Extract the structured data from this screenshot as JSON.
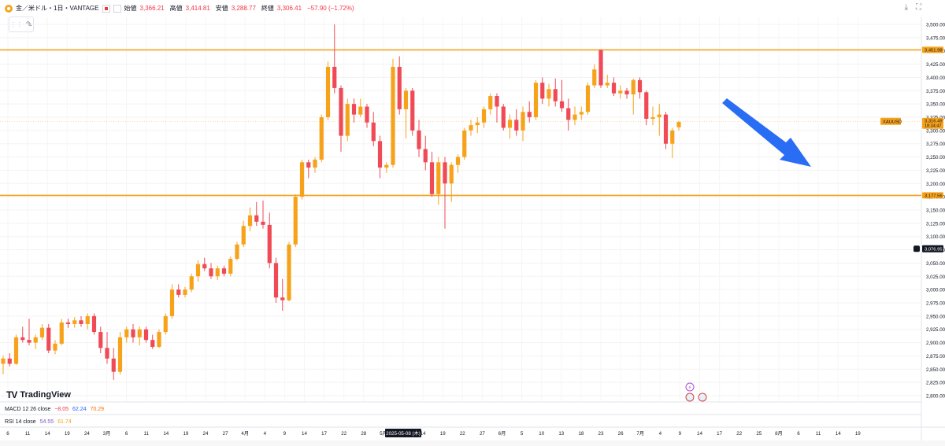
{
  "header": {
    "symbol": "金／米ドル・1日・VANTAGE",
    "open_label": "始値",
    "open": "3,366.21",
    "high_label": "高値",
    "high": "3,414.81",
    "low_label": "安値",
    "low": "3,288.77",
    "close_label": "終値",
    "close": "3,306.41",
    "change": "−57.90 (−1.72%)"
  },
  "indicators": {
    "macd_label": "MACD 12 26 close",
    "macd_v1": "−8.05",
    "macd_v2": "62.24",
    "macd_v3": "70.29",
    "rsi_label": "RSI 14 close",
    "rsi_v1": "54.55",
    "rsi_v2": "61.74"
  },
  "branding": {
    "logo_text": "TradingView"
  },
  "chart_data": {
    "type": "candlestick",
    "ylim": [
      2800,
      3525
    ],
    "y_ticks": [
      "3,500.00",
      "3,475.00",
      "3,450.00",
      "3,425.00",
      "3,400.00",
      "3,375.00",
      "3,350.00",
      "3,325.00",
      "3,300.00",
      "3,275.00",
      "3,250.00",
      "3,225.00",
      "3,200.00",
      "3,175.00",
      "3,150.00",
      "3,125.00",
      "3,100.00",
      "3,075.00",
      "3,050.00",
      "3,025.00",
      "3,000.00",
      "2,975.00",
      "2,950.00",
      "2,925.00",
      "2,900.00",
      "2,875.00",
      "2,850.00",
      "2,825.00",
      "2,800.00"
    ],
    "x_ticks": [
      "6",
      "11",
      "14",
      "19",
      "24",
      "3月",
      "6",
      "11",
      "14",
      "19",
      "24",
      "27",
      "4月",
      "4",
      "9",
      "14",
      "17",
      "22",
      "28",
      "5月",
      "2025-05-08 (木)",
      "14",
      "19",
      "22",
      "27",
      "6月",
      "5",
      "10",
      "13",
      "18",
      "23",
      "26",
      "7月",
      "4",
      "9",
      "14",
      "17",
      "22",
      "25",
      "8月",
      "6",
      "11",
      "14",
      "19"
    ],
    "horizontal_lines": [
      {
        "price": 3451.98,
        "label": "3,451.98",
        "color": "#f7a21b"
      },
      {
        "price": 3177.56,
        "label": "3,177.56",
        "color": "#f7a21b"
      }
    ],
    "price_labels": [
      {
        "symbol": "XAUUSD",
        "price": "3,316.49",
        "countdown": "18:34:47"
      },
      {
        "price": "3,076.95"
      }
    ],
    "up_color": "#f7a21b",
    "down_color": "#ef4a56",
    "candles": [
      {
        "o": 2860,
        "h": 2875,
        "l": 2840,
        "c": 2870
      },
      {
        "o": 2870,
        "h": 2880,
        "l": 2855,
        "c": 2860
      },
      {
        "o": 2860,
        "h": 2915,
        "l": 2858,
        "c": 2910
      },
      {
        "o": 2910,
        "h": 2930,
        "l": 2900,
        "c": 2905
      },
      {
        "o": 2905,
        "h": 2945,
        "l": 2895,
        "c": 2900
      },
      {
        "o": 2900,
        "h": 2915,
        "l": 2888,
        "c": 2910
      },
      {
        "o": 2910,
        "h": 2935,
        "l": 2905,
        "c": 2928
      },
      {
        "o": 2928,
        "h": 2935,
        "l": 2880,
        "c": 2885
      },
      {
        "o": 2885,
        "h": 2905,
        "l": 2878,
        "c": 2898
      },
      {
        "o": 2898,
        "h": 2945,
        "l": 2895,
        "c": 2938
      },
      {
        "o": 2938,
        "h": 2945,
        "l": 2928,
        "c": 2935
      },
      {
        "o": 2935,
        "h": 2948,
        "l": 2928,
        "c": 2942
      },
      {
        "o": 2942,
        "h": 2950,
        "l": 2930,
        "c": 2935
      },
      {
        "o": 2935,
        "h": 2955,
        "l": 2925,
        "c": 2950
      },
      {
        "o": 2950,
        "h": 2955,
        "l": 2915,
        "c": 2920
      },
      {
        "o": 2920,
        "h": 2930,
        "l": 2880,
        "c": 2890
      },
      {
        "o": 2890,
        "h": 2920,
        "l": 2860,
        "c": 2870
      },
      {
        "o": 2870,
        "h": 2890,
        "l": 2830,
        "c": 2845
      },
      {
        "o": 2845,
        "h": 2920,
        "l": 2840,
        "c": 2910
      },
      {
        "o": 2910,
        "h": 2930,
        "l": 2900,
        "c": 2925
      },
      {
        "o": 2925,
        "h": 2935,
        "l": 2900,
        "c": 2910
      },
      {
        "o": 2910,
        "h": 2930,
        "l": 2895,
        "c": 2925
      },
      {
        "o": 2925,
        "h": 2930,
        "l": 2900,
        "c": 2905
      },
      {
        "o": 2905,
        "h": 2915,
        "l": 2888,
        "c": 2892
      },
      {
        "o": 2892,
        "h": 2925,
        "l": 2890,
        "c": 2920
      },
      {
        "o": 2920,
        "h": 2955,
        "l": 2915,
        "c": 2950
      },
      {
        "o": 2950,
        "h": 3010,
        "l": 2945,
        "c": 3000
      },
      {
        "o": 3000,
        "h": 3010,
        "l": 2985,
        "c": 2990
      },
      {
        "o": 2990,
        "h": 3005,
        "l": 2985,
        "c": 3000
      },
      {
        "o": 3000,
        "h": 3030,
        "l": 2995,
        "c": 3025
      },
      {
        "o": 3025,
        "h": 3055,
        "l": 3015,
        "c": 3048
      },
      {
        "o": 3048,
        "h": 3060,
        "l": 3035,
        "c": 3040
      },
      {
        "o": 3040,
        "h": 3050,
        "l": 3020,
        "c": 3025
      },
      {
        "o": 3025,
        "h": 3045,
        "l": 3018,
        "c": 3040
      },
      {
        "o": 3040,
        "h": 3045,
        "l": 3025,
        "c": 3030
      },
      {
        "o": 3030,
        "h": 3062,
        "l": 3025,
        "c": 3058
      },
      {
        "o": 3058,
        "h": 3090,
        "l": 3055,
        "c": 3085
      },
      {
        "o": 3085,
        "h": 3130,
        "l": 3080,
        "c": 3120
      },
      {
        "o": 3120,
        "h": 3155,
        "l": 3110,
        "c": 3140
      },
      {
        "o": 3140,
        "h": 3165,
        "l": 3120,
        "c": 3128
      },
      {
        "o": 3128,
        "h": 3168,
        "l": 3115,
        "c": 3122
      },
      {
        "o": 3122,
        "h": 3145,
        "l": 3040,
        "c": 3050
      },
      {
        "o": 3050,
        "h": 3060,
        "l": 2975,
        "c": 2985
      },
      {
        "o": 2985,
        "h": 3020,
        "l": 2960,
        "c": 2980
      },
      {
        "o": 2980,
        "h": 3090,
        "l": 2978,
        "c": 3085
      },
      {
        "o": 3085,
        "h": 3180,
        "l": 3080,
        "c": 3175
      },
      {
        "o": 3175,
        "h": 3245,
        "l": 3170,
        "c": 3240
      },
      {
        "o": 3240,
        "h": 3245,
        "l": 3210,
        "c": 3230
      },
      {
        "o": 3230,
        "h": 3250,
        "l": 3220,
        "c": 3245
      },
      {
        "o": 3245,
        "h": 3330,
        "l": 3240,
        "c": 3325
      },
      {
        "o": 3325,
        "h": 3430,
        "l": 3320,
        "c": 3420
      },
      {
        "o": 3420,
        "h": 3500,
        "l": 3370,
        "c": 3380
      },
      {
        "o": 3380,
        "h": 3385,
        "l": 3260,
        "c": 3290
      },
      {
        "o": 3290,
        "h": 3360,
        "l": 3280,
        "c": 3350
      },
      {
        "o": 3350,
        "h": 3360,
        "l": 3315,
        "c": 3330
      },
      {
        "o": 3330,
        "h": 3360,
        "l": 3325,
        "c": 3345
      },
      {
        "o": 3345,
        "h": 3350,
        "l": 3305,
        "c": 3315
      },
      {
        "o": 3315,
        "h": 3335,
        "l": 3270,
        "c": 3280
      },
      {
        "o": 3280,
        "h": 3290,
        "l": 3210,
        "c": 3230
      },
      {
        "o": 3230,
        "h": 3240,
        "l": 3220,
        "c": 3235
      },
      {
        "o": 3235,
        "h": 3435,
        "l": 3230,
        "c": 3420
      },
      {
        "o": 3420,
        "h": 3440,
        "l": 3330,
        "c": 3340
      },
      {
        "o": 3340,
        "h": 3380,
        "l": 3285,
        "c": 3375
      },
      {
        "o": 3375,
        "h": 3380,
        "l": 3290,
        "c": 3300
      },
      {
        "o": 3300,
        "h": 3320,
        "l": 3250,
        "c": 3265
      },
      {
        "o": 3265,
        "h": 3290,
        "l": 3225,
        "c": 3240
      },
      {
        "o": 3240,
        "h": 3260,
        "l": 3175,
        "c": 3180
      },
      {
        "o": 3180,
        "h": 3250,
        "l": 3160,
        "c": 3240
      },
      {
        "o": 3240,
        "h": 3250,
        "l": 3115,
        "c": 3200
      },
      {
        "o": 3200,
        "h": 3240,
        "l": 3165,
        "c": 3235
      },
      {
        "o": 3235,
        "h": 3255,
        "l": 3220,
        "c": 3250
      },
      {
        "o": 3250,
        "h": 3305,
        "l": 3245,
        "c": 3300
      },
      {
        "o": 3300,
        "h": 3320,
        "l": 3290,
        "c": 3310
      },
      {
        "o": 3310,
        "h": 3325,
        "l": 3295,
        "c": 3315
      },
      {
        "o": 3315,
        "h": 3345,
        "l": 3305,
        "c": 3340
      },
      {
        "o": 3340,
        "h": 3370,
        "l": 3330,
        "c": 3365
      },
      {
        "o": 3365,
        "h": 3370,
        "l": 3315,
        "c": 3345
      },
      {
        "o": 3345,
        "h": 3350,
        "l": 3300,
        "c": 3305
      },
      {
        "o": 3305,
        "h": 3330,
        "l": 3285,
        "c": 3320
      },
      {
        "o": 3320,
        "h": 3340,
        "l": 3290,
        "c": 3300
      },
      {
        "o": 3300,
        "h": 3345,
        "l": 3280,
        "c": 3335
      },
      {
        "o": 3335,
        "h": 3355,
        "l": 3315,
        "c": 3325
      },
      {
        "o": 3325,
        "h": 3395,
        "l": 3320,
        "c": 3390
      },
      {
        "o": 3390,
        "h": 3400,
        "l": 3350,
        "c": 3360
      },
      {
        "o": 3360,
        "h": 3388,
        "l": 3345,
        "c": 3378
      },
      {
        "o": 3378,
        "h": 3398,
        "l": 3345,
        "c": 3355
      },
      {
        "o": 3355,
        "h": 3395,
        "l": 3335,
        "c": 3342
      },
      {
        "o": 3342,
        "h": 3360,
        "l": 3300,
        "c": 3320
      },
      {
        "o": 3320,
        "h": 3345,
        "l": 3310,
        "c": 3330
      },
      {
        "o": 3330,
        "h": 3345,
        "l": 3320,
        "c": 3335
      },
      {
        "o": 3335,
        "h": 3390,
        "l": 3330,
        "c": 3385
      },
      {
        "o": 3385,
        "h": 3425,
        "l": 3380,
        "c": 3415
      },
      {
        "o": 3452,
        "h": 3452,
        "l": 3380,
        "c": 3385
      },
      {
        "o": 3385,
        "h": 3405,
        "l": 3380,
        "c": 3390
      },
      {
        "o": 3390,
        "h": 3400,
        "l": 3365,
        "c": 3370
      },
      {
        "o": 3370,
        "h": 3385,
        "l": 3360,
        "c": 3375
      },
      {
        "o": 3375,
        "h": 3380,
        "l": 3360,
        "c": 3368
      },
      {
        "o": 3368,
        "h": 3398,
        "l": 3330,
        "c": 3395
      },
      {
        "o": 3395,
        "h": 3400,
        "l": 3360,
        "c": 3372
      },
      {
        "o": 3372,
        "h": 3375,
        "l": 3310,
        "c": 3322
      },
      {
        "o": 3322,
        "h": 3345,
        "l": 3310,
        "c": 3325
      },
      {
        "o": 3325,
        "h": 3350,
        "l": 3290,
        "c": 3330
      },
      {
        "o": 3330,
        "h": 3335,
        "l": 3265,
        "c": 3275
      },
      {
        "o": 3275,
        "h": 3305,
        "l": 3248,
        "c": 3300
      },
      {
        "o": 3306,
        "h": 3318,
        "l": 3300,
        "c": 3316
      }
    ]
  }
}
